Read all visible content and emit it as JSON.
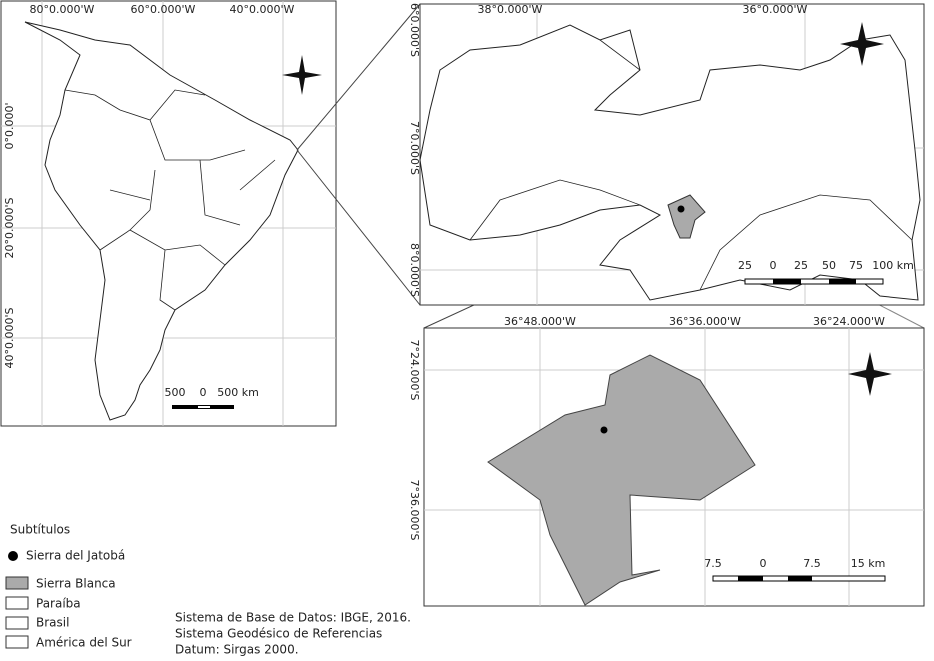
{
  "panels": [
    {
      "lon_labels": [
        "80°0.000'W",
        "60°0.000'W",
        "40°0.000'W"
      ],
      "lat_labels": [
        "0°0.000'",
        "20°0.000'S",
        "40°0.000'S"
      ],
      "scale_labels": [
        "500",
        "0",
        "500 km"
      ]
    },
    {
      "lon_labels": [
        "38°0.000'W",
        "36°0.000'W"
      ],
      "lat_labels": [
        "6°0.000'S",
        "7°0.000'S",
        "8°0.000'S"
      ],
      "scale_labels": [
        "25",
        "0",
        "25",
        "50",
        "75",
        "100 km"
      ]
    },
    {
      "lon_labels": [
        "36°48.000'W",
        "36°36.000'W",
        "36°24.000'W"
      ],
      "lat_labels": [
        "7°24.000'S",
        "7°36.000'S"
      ],
      "scale_labels": [
        "7.5",
        "0",
        "7.5",
        "15 km"
      ]
    }
  ],
  "legend": {
    "title": "Subtítulos",
    "items": [
      "Sierra del Jatobá",
      "Sierra Blanca",
      "Paraíba",
      "Brasil",
      "América del Sur"
    ]
  },
  "source": [
    "Sistema de Base de Datos: IBGE, 2016.",
    "Sistema Geodésico de Referencias",
    "Datum: Sirgas 2000."
  ]
}
